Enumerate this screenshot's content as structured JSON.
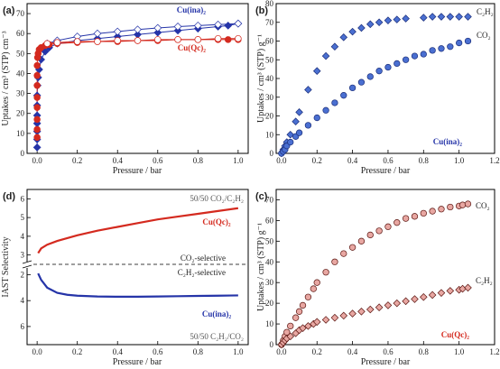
{
  "chart_data": [
    {
      "panel": "(a)",
      "type": "scatter",
      "xlabel": "Pressure / bar",
      "ylabel": "Uptakes / cm³ (STP) cm⁻³",
      "xlim": [
        -0.05,
        1.05
      ],
      "ylim": [
        0,
        75
      ],
      "xticks": [
        "0.0",
        "0.2",
        "0.4",
        "0.6",
        "0.8",
        "1.0"
      ],
      "xtick_values": [
        0,
        0.2,
        0.4,
        0.6,
        0.8,
        1.0
      ],
      "yticks": [
        "0",
        "10",
        "20",
        "30",
        "40",
        "50",
        "60",
        "70"
      ],
      "ytick_values": [
        0,
        10,
        20,
        30,
        40,
        50,
        60,
        70
      ],
      "series": [
        {
          "name": "Cu(ina)₂",
          "color": "#2534a8",
          "marker": "diamond",
          "adsorption": {
            "x": [
              0.0,
              0.0,
              0.0,
              0.0,
              0.0,
              0.0,
              0.0,
              0.002,
              0.005,
              0.01,
              0.02,
              0.04,
              0.06,
              0.1,
              0.2,
              0.3,
              0.4,
              0.5,
              0.6,
              0.7,
              0.8,
              0.9,
              0.95,
              1.0
            ],
            "y": [
              3,
              7,
              11,
              15,
              19,
              24,
              29,
              34,
              38,
              42,
              47,
              51,
              53,
              55,
              56.5,
              57.5,
              58.5,
              59.5,
              60.5,
              61.5,
              62.5,
              63.5,
              64,
              65
            ]
          },
          "desorption": {
            "x": [
              1.0,
              0.9,
              0.8,
              0.7,
              0.6,
              0.5,
              0.4,
              0.3,
              0.2,
              0.1,
              0.05
            ],
            "y": [
              65,
              64.5,
              64,
              63.5,
              62.8,
              62,
              61,
              60,
              58.5,
              56.5,
              55
            ]
          }
        },
        {
          "name": "Cu(Qc)₂",
          "color": "#d42a1f",
          "marker": "circle",
          "adsorption": {
            "x": [
              0.0,
              0.0,
              0.0,
              0.0,
              0.0,
              0.0,
              0.0,
              0.0,
              0.002,
              0.005,
              0.01,
              0.02,
              0.04,
              0.06,
              0.1,
              0.2,
              0.3,
              0.4,
              0.5,
              0.6,
              0.7,
              0.8,
              0.9,
              0.95,
              1.0
            ],
            "y": [
              8,
              12,
              17,
              23,
              28,
              34,
              39,
              44,
              48,
              50,
              52,
              53,
              54,
              54.5,
              55,
              55.5,
              56,
              56,
              56.5,
              56.5,
              57,
              57,
              57,
              57,
              57
            ]
          },
          "desorption": {
            "x": [
              1.0,
              0.9,
              0.8,
              0.7,
              0.6,
              0.5,
              0.4,
              0.3,
              0.2,
              0.1,
              0.05
            ],
            "y": [
              57.5,
              57.5,
              57,
              57,
              57,
              56.5,
              56.5,
              56,
              56,
              55.5,
              55
            ]
          }
        }
      ]
    },
    {
      "panel": "(b)",
      "type": "scatter",
      "xlabel": "Pressure / bar",
      "ylabel": "Uptakes / cm³ (STP) g⁻¹",
      "xlim": [
        -0.03,
        1.2
      ],
      "ylim": [
        0,
        80
      ],
      "xticks": [
        "0.0",
        "0.2",
        "0.4",
        "0.6",
        "0.8",
        "1.0",
        "1.2"
      ],
      "xtick_values": [
        0,
        0.2,
        0.4,
        0.6,
        0.8,
        1.0,
        1.2
      ],
      "yticks": [
        "0",
        "10",
        "20",
        "30",
        "40",
        "50",
        "60",
        "70",
        "80"
      ],
      "ytick_values": [
        0,
        10,
        20,
        30,
        40,
        50,
        60,
        70,
        80
      ],
      "sample_label": "Cu(ina)₂",
      "series": [
        {
          "name": "C₂H₂",
          "color": "#4a6fd1",
          "marker": "diamond",
          "x": [
            0.0,
            0.01,
            0.02,
            0.03,
            0.05,
            0.08,
            0.1,
            0.15,
            0.2,
            0.25,
            0.3,
            0.35,
            0.4,
            0.45,
            0.5,
            0.55,
            0.6,
            0.65,
            0.7,
            0.8,
            0.85,
            0.9,
            0.95,
            1.0,
            1.05
          ],
          "y": [
            0,
            2,
            4,
            6,
            10,
            17,
            22,
            34,
            44,
            52,
            57,
            62,
            65,
            67,
            69,
            70,
            71,
            71.5,
            72,
            72.5,
            73,
            73,
            73,
            73,
            73
          ]
        },
        {
          "name": "CO₂",
          "color": "#4a6fd1",
          "marker": "circle",
          "x": [
            0.0,
            0.01,
            0.02,
            0.03,
            0.05,
            0.08,
            0.1,
            0.15,
            0.2,
            0.25,
            0.3,
            0.35,
            0.4,
            0.45,
            0.5,
            0.55,
            0.6,
            0.65,
            0.7,
            0.75,
            0.8,
            0.85,
            0.9,
            0.95,
            1.0,
            1.05
          ],
          "y": [
            0,
            1,
            2,
            4,
            6,
            9,
            11,
            15,
            19,
            23,
            27,
            31,
            35,
            38,
            41,
            44,
            46,
            48,
            50,
            52,
            53,
            55,
            56,
            57,
            59,
            60
          ]
        }
      ]
    },
    {
      "panel": "(d)",
      "type": "line",
      "xlabel": "Pressure / bar",
      "ylabel": "IAST Selectivity",
      "xlim": [
        -0.05,
        1.05
      ],
      "xticks": [
        "0.0",
        "0.2",
        "0.4",
        "0.6",
        "0.8",
        "1.0"
      ],
      "xtick_values": [
        0,
        0.2,
        0.4,
        0.6,
        0.8,
        1.0
      ],
      "top_yticks": [
        "3",
        "4",
        "5",
        "6"
      ],
      "top_ytick_values": [
        3,
        4,
        5,
        6
      ],
      "top_ylim": [
        2.5,
        6.5
      ],
      "bottom_yticks": [
        "2",
        "4",
        "6"
      ],
      "bottom_ytick_values": [
        2,
        4,
        6
      ],
      "bottom_ylim": [
        1.2,
        7.4
      ],
      "divider_labels": [
        "CO₂-selective",
        "C₂H₂-selective"
      ],
      "series": [
        {
          "name": "Cu(Qc)₂",
          "condition": "50/50 CO₂/C₂H₂",
          "color": "#d42a1f",
          "x": [
            0.005,
            0.02,
            0.05,
            0.1,
            0.2,
            0.3,
            0.4,
            0.5,
            0.6,
            0.7,
            0.8,
            0.9,
            1.0
          ],
          "y": [
            3.1,
            3.35,
            3.55,
            3.75,
            4.05,
            4.3,
            4.5,
            4.7,
            4.9,
            5.05,
            5.2,
            5.35,
            5.5
          ]
        },
        {
          "name": "Cu(ina)₂",
          "condition": "50/50 C₂H₂/CO₂",
          "color": "#2534a8",
          "x": [
            0.005,
            0.02,
            0.05,
            0.1,
            0.15,
            0.2,
            0.3,
            0.4,
            0.5,
            0.6,
            0.7,
            0.8,
            0.9,
            1.0
          ],
          "y": [
            1.9,
            2.4,
            3.0,
            3.4,
            3.55,
            3.62,
            3.68,
            3.7,
            3.7,
            3.68,
            3.66,
            3.64,
            3.62,
            3.6
          ]
        }
      ]
    },
    {
      "panel": "(c)",
      "type": "scatter",
      "xlabel": "Pressure / bar",
      "ylabel": "Uptakes / cm³ (STP) g⁻¹",
      "xlim": [
        -0.03,
        1.2
      ],
      "ylim": [
        0,
        75
      ],
      "xticks": [
        "0.0",
        "0.2",
        "0.4",
        "0.6",
        "0.8",
        "1.0",
        "1.2"
      ],
      "xtick_values": [
        0,
        0.2,
        0.4,
        0.6,
        0.8,
        1.0,
        1.2
      ],
      "yticks": [
        "0",
        "10",
        "20",
        "30",
        "40",
        "50",
        "60",
        "70"
      ],
      "ytick_values": [
        0,
        10,
        20,
        30,
        40,
        50,
        60,
        70
      ],
      "sample_label": "Cu(Qc)₂",
      "series": [
        {
          "name": "CO₂",
          "color": "#e8a7a2",
          "marker": "circle",
          "x": [
            0.0,
            0.01,
            0.02,
            0.03,
            0.05,
            0.08,
            0.1,
            0.12,
            0.15,
            0.18,
            0.2,
            0.25,
            0.3,
            0.35,
            0.4,
            0.45,
            0.5,
            0.55,
            0.6,
            0.65,
            0.7,
            0.75,
            0.8,
            0.85,
            0.9,
            0.95,
            1.0,
            1.02,
            1.05
          ],
          "y": [
            0,
            2,
            4,
            6,
            9,
            13,
            16,
            19,
            23,
            27,
            30,
            35,
            40,
            44,
            47,
            50,
            53,
            55,
            57,
            59,
            61,
            62,
            63.5,
            64.5,
            65.5,
            66.5,
            67,
            67.5,
            68
          ]
        },
        {
          "name": "C₂H₂",
          "color": "#e8a7a2",
          "marker": "diamond",
          "x": [
            0.0,
            0.01,
            0.02,
            0.03,
            0.05,
            0.08,
            0.1,
            0.12,
            0.15,
            0.18,
            0.2,
            0.25,
            0.3,
            0.35,
            0.4,
            0.45,
            0.5,
            0.55,
            0.6,
            0.65,
            0.7,
            0.75,
            0.8,
            0.85,
            0.9,
            0.95,
            1.0,
            1.02,
            1.05
          ],
          "y": [
            0,
            1,
            2,
            3,
            4,
            5.5,
            7,
            8,
            9,
            10,
            11,
            12,
            13,
            14,
            15,
            16,
            17,
            18,
            19,
            20,
            21,
            22,
            23,
            24,
            25,
            26,
            26.5,
            27,
            27.5
          ]
        }
      ]
    }
  ]
}
